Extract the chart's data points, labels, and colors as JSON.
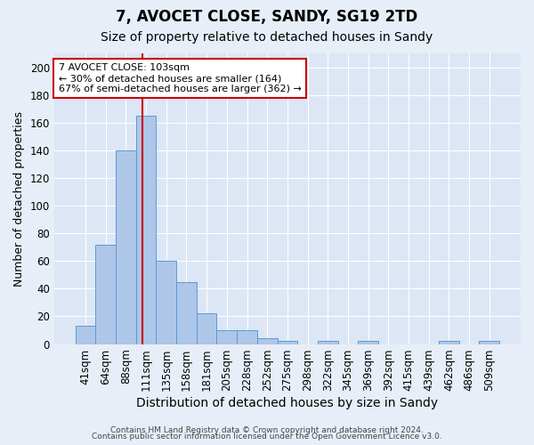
{
  "title1": "7, AVOCET CLOSE, SANDY, SG19 2TD",
  "title2": "Size of property relative to detached houses in Sandy",
  "xlabel": "Distribution of detached houses by size in Sandy",
  "ylabel": "Number of detached properties",
  "categories": [
    "41sqm",
    "64sqm",
    "88sqm",
    "111sqm",
    "135sqm",
    "158sqm",
    "181sqm",
    "205sqm",
    "228sqm",
    "252sqm",
    "275sqm",
    "298sqm",
    "322sqm",
    "345sqm",
    "369sqm",
    "392sqm",
    "415sqm",
    "439sqm",
    "462sqm",
    "486sqm",
    "509sqm"
  ],
  "values": [
    13,
    72,
    140,
    165,
    60,
    45,
    22,
    10,
    10,
    4,
    2,
    0,
    2,
    0,
    2,
    0,
    0,
    0,
    2,
    0,
    2
  ],
  "bar_color": "#aec6e8",
  "bar_edge_color": "#5b9bd5",
  "background_color": "#dce6f5",
  "fig_background_color": "#e8eef8",
  "grid_color": "#ffffff",
  "ylim": [
    0,
    210
  ],
  "yticks": [
    0,
    20,
    40,
    60,
    80,
    100,
    120,
    140,
    160,
    180,
    200
  ],
  "red_line_x": 2.84,
  "annotation_text": "7 AVOCET CLOSE: 103sqm\n← 30% of detached houses are smaller (164)\n67% of semi-detached houses are larger (362) →",
  "annotation_box_color": "#ffffff",
  "annotation_border_color": "#cc0000",
  "footnote1": "Contains HM Land Registry data © Crown copyright and database right 2024.",
  "footnote2": "Contains public sector information licensed under the Open Government Licence v3.0.",
  "title1_fontsize": 12,
  "title2_fontsize": 10,
  "xlabel_fontsize": 10,
  "ylabel_fontsize": 9,
  "tick_fontsize": 8.5,
  "annot_fontsize": 8
}
